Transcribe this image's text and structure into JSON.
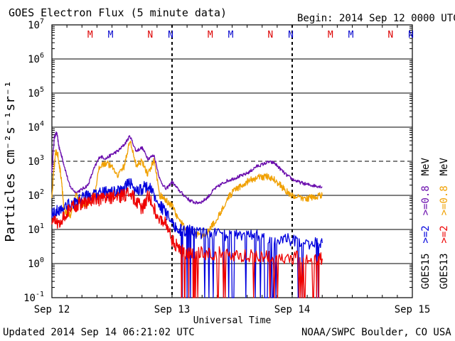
{
  "header": {
    "title": "GOES Electron Flux (5 minute data)",
    "begin": "Begin: 2014 Sep 12 0000 UTC"
  },
  "footer": {
    "updated": "Updated 2014 Sep 14 06:21:02 UTC",
    "credit": "NOAA/SWPC Boulder, CO USA"
  },
  "chart_data": {
    "type": "line",
    "title": "GOES Electron Flux (5 minute data)",
    "xlabel": "Universal Time",
    "ylabel": "Particles cm⁻²s⁻¹sr⁻¹",
    "y_scale": "log",
    "ylim": [
      0.1,
      10000000
    ],
    "xlim": [
      0,
      3
    ],
    "y_ticks": [
      {
        "value": 0.1,
        "base": "10",
        "exp": "-1"
      },
      {
        "value": 1,
        "base": "10",
        "exp": "0"
      },
      {
        "value": 10,
        "base": "10",
        "exp": "1"
      },
      {
        "value": 100,
        "base": "10",
        "exp": "2"
      },
      {
        "value": 1000,
        "base": "10",
        "exp": "3"
      },
      {
        "value": 10000,
        "base": "10",
        "exp": "4"
      },
      {
        "value": 100000,
        "base": "10",
        "exp": "5"
      },
      {
        "value": 1000000,
        "base": "10",
        "exp": "6"
      },
      {
        "value": 10000000,
        "base": "10",
        "exp": "7"
      }
    ],
    "x_ticks": [
      {
        "value": 0,
        "label": "Sep 12"
      },
      {
        "value": 1,
        "label": "Sep 13"
      },
      {
        "value": 2,
        "label": "Sep 14"
      },
      {
        "value": 3,
        "label": "Sep 15"
      }
    ],
    "threshold_lines": [
      1000
    ],
    "day_separators": [
      1,
      2
    ],
    "markers": [
      {
        "x": 0.33,
        "text": "M",
        "color": "#dd0000"
      },
      {
        "x": 0.5,
        "text": "M",
        "color": "#0000cc"
      },
      {
        "x": 0.83,
        "text": "N",
        "color": "#dd0000"
      },
      {
        "x": 1.0,
        "text": "N",
        "color": "#0000cc"
      },
      {
        "x": 1.33,
        "text": "M",
        "color": "#dd0000"
      },
      {
        "x": 1.5,
        "text": "M",
        "color": "#0000cc"
      },
      {
        "x": 1.83,
        "text": "N",
        "color": "#dd0000"
      },
      {
        "x": 2.0,
        "text": "N",
        "color": "#0000cc"
      },
      {
        "x": 2.33,
        "text": "M",
        "color": "#dd0000"
      },
      {
        "x": 2.5,
        "text": "M",
        "color": "#0000cc"
      },
      {
        "x": 2.83,
        "text": "N",
        "color": "#dd0000"
      },
      {
        "x": 3.0,
        "text": "N",
        "color": "#0000cc"
      }
    ],
    "right_labels": {
      "left_col": [
        {
          "text": "GOES15",
          "color": "#000000"
        },
        {
          "text": ">=2",
          "color": "#0000dd"
        },
        {
          "text": ">=0.8",
          "color": "#6a0dad"
        },
        {
          "text": "MeV",
          "color": "#000000"
        }
      ],
      "right_col": [
        {
          "text": "GOES13",
          "color": "#000000"
        },
        {
          "text": ">=2",
          "color": "#ee0000"
        },
        {
          "text": ">=0.8",
          "color": "#f0a000"
        },
        {
          "text": "MeV",
          "color": "#000000"
        }
      ]
    },
    "series": [
      {
        "name": "GOES15 >=0.8 MeV",
        "color": "#6a0dad",
        "noise": 0.05,
        "x": [
          0,
          0.02,
          0.04,
          0.06,
          0.08,
          0.1,
          0.15,
          0.2,
          0.25,
          0.3,
          0.35,
          0.4,
          0.45,
          0.5,
          0.55,
          0.6,
          0.65,
          0.7,
          0.75,
          0.8,
          0.85,
          0.9,
          0.95,
          1.0,
          1.05,
          1.1,
          1.15,
          1.2,
          1.25,
          1.3,
          1.35,
          1.4,
          1.45,
          1.5,
          1.55,
          1.6,
          1.65,
          1.7,
          1.75,
          1.8,
          1.85,
          1.9,
          1.95,
          2.0,
          2.05,
          2.1,
          2.15,
          2.2,
          2.25
        ],
        "y": [
          500,
          5000,
          7000,
          2500,
          1500,
          800,
          180,
          120,
          150,
          200,
          600,
          1400,
          1200,
          1600,
          2000,
          3000,
          5500,
          2000,
          2500,
          1200,
          1500,
          280,
          150,
          250,
          150,
          100,
          70,
          60,
          65,
          90,
          150,
          200,
          260,
          300,
          350,
          400,
          500,
          700,
          800,
          950,
          900,
          600,
          400,
          300,
          250,
          220,
          200,
          190,
          180
        ]
      },
      {
        "name": "GOES13 >=0.8 MeV",
        "color": "#f0a000",
        "noise": 0.1,
        "x": [
          0,
          0.03,
          0.05,
          0.08,
          0.1,
          0.13,
          0.16,
          0.2,
          0.25,
          0.3,
          0.35,
          0.4,
          0.45,
          0.5,
          0.55,
          0.6,
          0.65,
          0.7,
          0.75,
          0.8,
          0.85,
          0.9,
          0.95,
          1.0,
          1.05,
          1.1,
          1.15,
          1.2,
          1.25,
          1.3,
          1.35,
          1.4,
          1.45,
          1.5,
          1.55,
          1.6,
          1.65,
          1.7,
          1.75,
          1.8,
          1.85,
          1.9,
          1.95,
          2.0,
          2.05,
          2.1,
          2.15,
          2.2,
          2.25
        ],
        "y": [
          100,
          2000,
          1500,
          300,
          40,
          30,
          25,
          100,
          50,
          60,
          80,
          800,
          900,
          700,
          400,
          700,
          4000,
          800,
          1000,
          400,
          1100,
          100,
          70,
          50,
          20,
          12,
          8,
          7,
          7,
          9,
          15,
          30,
          70,
          120,
          160,
          220,
          280,
          320,
          350,
          350,
          300,
          200,
          130,
          100,
          85,
          80,
          85,
          95,
          100
        ]
      },
      {
        "name": "GOES15 >=2 MeV",
        "color": "#0000dd",
        "noise": 0.18,
        "x": [
          0,
          0.05,
          0.1,
          0.15,
          0.2,
          0.25,
          0.3,
          0.35,
          0.4,
          0.45,
          0.5,
          0.55,
          0.6,
          0.65,
          0.7,
          0.75,
          0.8,
          0.85,
          0.9,
          0.95,
          1.0,
          1.05,
          1.1,
          1.15,
          1.2,
          1.3,
          1.4,
          1.5,
          1.6,
          1.7,
          1.8,
          1.9,
          2.0,
          2.1,
          2.2,
          2.25
        ],
        "y": [
          30,
          35,
          45,
          55,
          60,
          80,
          100,
          100,
          110,
          120,
          120,
          130,
          150,
          250,
          120,
          160,
          200,
          100,
          50,
          30,
          15,
          10,
          9,
          9,
          8,
          8,
          7,
          7,
          6,
          7,
          6,
          5,
          5,
          4,
          4,
          4
        ]
      },
      {
        "name": "GOES13 >=2 MeV",
        "color": "#ee0000",
        "noise": 0.2,
        "x": [
          0,
          0.05,
          0.1,
          0.15,
          0.2,
          0.25,
          0.3,
          0.35,
          0.4,
          0.45,
          0.5,
          0.55,
          0.6,
          0.65,
          0.7,
          0.75,
          0.8,
          0.85,
          0.9,
          0.95,
          1.0,
          1.05,
          1.1,
          1.15,
          1.2,
          1.3,
          1.4,
          1.5,
          1.6,
          1.7,
          1.8,
          1.9,
          2.0,
          2.1,
          2.2,
          2.25
        ],
        "y": [
          20,
          15,
          25,
          40,
          50,
          60,
          60,
          80,
          70,
          80,
          90,
          90,
          100,
          120,
          70,
          40,
          100,
          40,
          20,
          15,
          5,
          3,
          2,
          2,
          2,
          2,
          2,
          1.8,
          1.6,
          1.8,
          1.6,
          1.5,
          1.5,
          1.5,
          1.4,
          1.4
        ]
      }
    ]
  }
}
